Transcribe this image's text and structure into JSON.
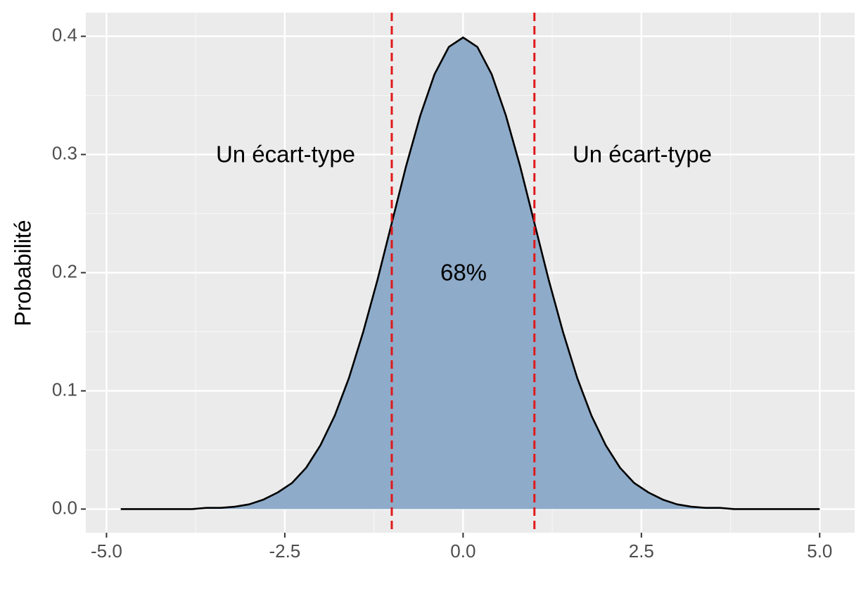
{
  "chart_data": {
    "type": "area",
    "y_label": "Probabilité",
    "x": [
      -4.8,
      -4.6,
      -4.4,
      -4.2,
      -4.0,
      -3.8,
      -3.6,
      -3.4,
      -3.2,
      -3.0,
      -2.8,
      -2.6,
      -2.4,
      -2.2,
      -2.0,
      -1.8,
      -1.6,
      -1.4,
      -1.2,
      -1.0,
      -0.8,
      -0.6,
      -0.4,
      -0.2,
      0,
      0.2,
      0.4,
      0.6,
      0.8,
      1.0,
      1.2,
      1.4,
      1.6,
      1.8,
      2.0,
      2.2,
      2.4,
      2.6,
      2.8,
      3.0,
      3.2,
      3.4,
      3.6,
      3.8,
      4.0,
      4.2,
      4.4,
      4.6,
      4.8,
      5.0
    ],
    "values": [
      0,
      0,
      0,
      0,
      0,
      0,
      0.001,
      0.001,
      0.002,
      0.004,
      0.008,
      0.014,
      0.022,
      0.035,
      0.054,
      0.079,
      0.111,
      0.15,
      0.194,
      0.242,
      0.29,
      0.333,
      0.368,
      0.391,
      0.399,
      0.391,
      0.368,
      0.333,
      0.29,
      0.242,
      0.194,
      0.15,
      0.111,
      0.079,
      0.054,
      0.035,
      0.022,
      0.014,
      0.008,
      0.004,
      0.002,
      0.001,
      0.001,
      0,
      0,
      0,
      0,
      0,
      0,
      0
    ],
    "color": "#8eabc9",
    "line_color": "#000000",
    "vlines": [
      -1,
      1
    ],
    "vline_color": "#e0191b",
    "annotations": [
      "Un écart-type",
      "Un écart-type",
      "68%"
    ],
    "xlim": [
      -5.29,
      5.49
    ],
    "ylim": [
      -0.02,
      0.42
    ],
    "xticks": [
      {
        "value": -5,
        "label": "-5.0"
      },
      -2.5,
      {
        "value": 0,
        "label": "0.0"
      },
      2.5,
      {
        "value": 5,
        "label": "5.0"
      }
    ],
    "yticks": [
      {
        "value": 0,
        "label": "0.0"
      },
      0.1,
      0.2,
      0.3,
      0.4
    ],
    "grid": true
  }
}
